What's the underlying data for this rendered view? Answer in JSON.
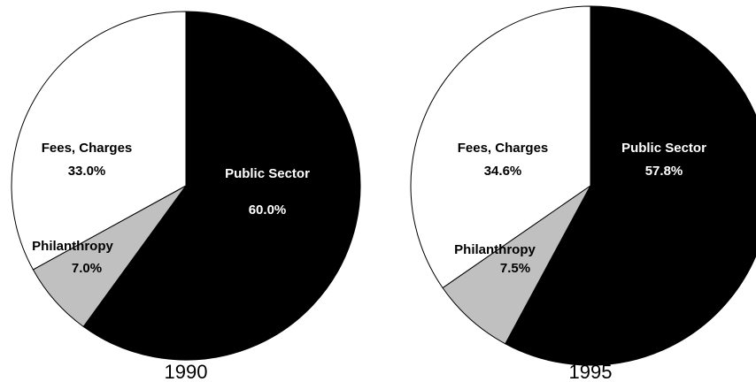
{
  "chart_data": [
    {
      "type": "pie",
      "title": "1990",
      "slices": [
        {
          "label": "Public Sector",
          "value": 60.0,
          "value_label": "60.0%",
          "color": "#000000",
          "text_color": "#ffffff"
        },
        {
          "label": "Philanthropy",
          "value": 7.0,
          "value_label": "7.0%",
          "color": "#c0c0c0",
          "text_color": "#000000"
        },
        {
          "label": "Fees, Charges",
          "value": 33.0,
          "value_label": "33.0%",
          "color": "#ffffff",
          "text_color": "#000000"
        }
      ]
    },
    {
      "type": "pie",
      "title": "1995",
      "slices": [
        {
          "label": "Public Sector",
          "value": 57.8,
          "value_label": "57.8%",
          "color": "#000000",
          "text_color": "#ffffff"
        },
        {
          "label": "Philanthropy",
          "value": 7.5,
          "value_label": "7.5%",
          "color": "#c0c0c0",
          "text_color": "#000000"
        },
        {
          "label": "Fees, Charges",
          "value": 34.6,
          "value_label": "34.6%",
          "color": "#ffffff",
          "text_color": "#000000"
        }
      ]
    }
  ]
}
